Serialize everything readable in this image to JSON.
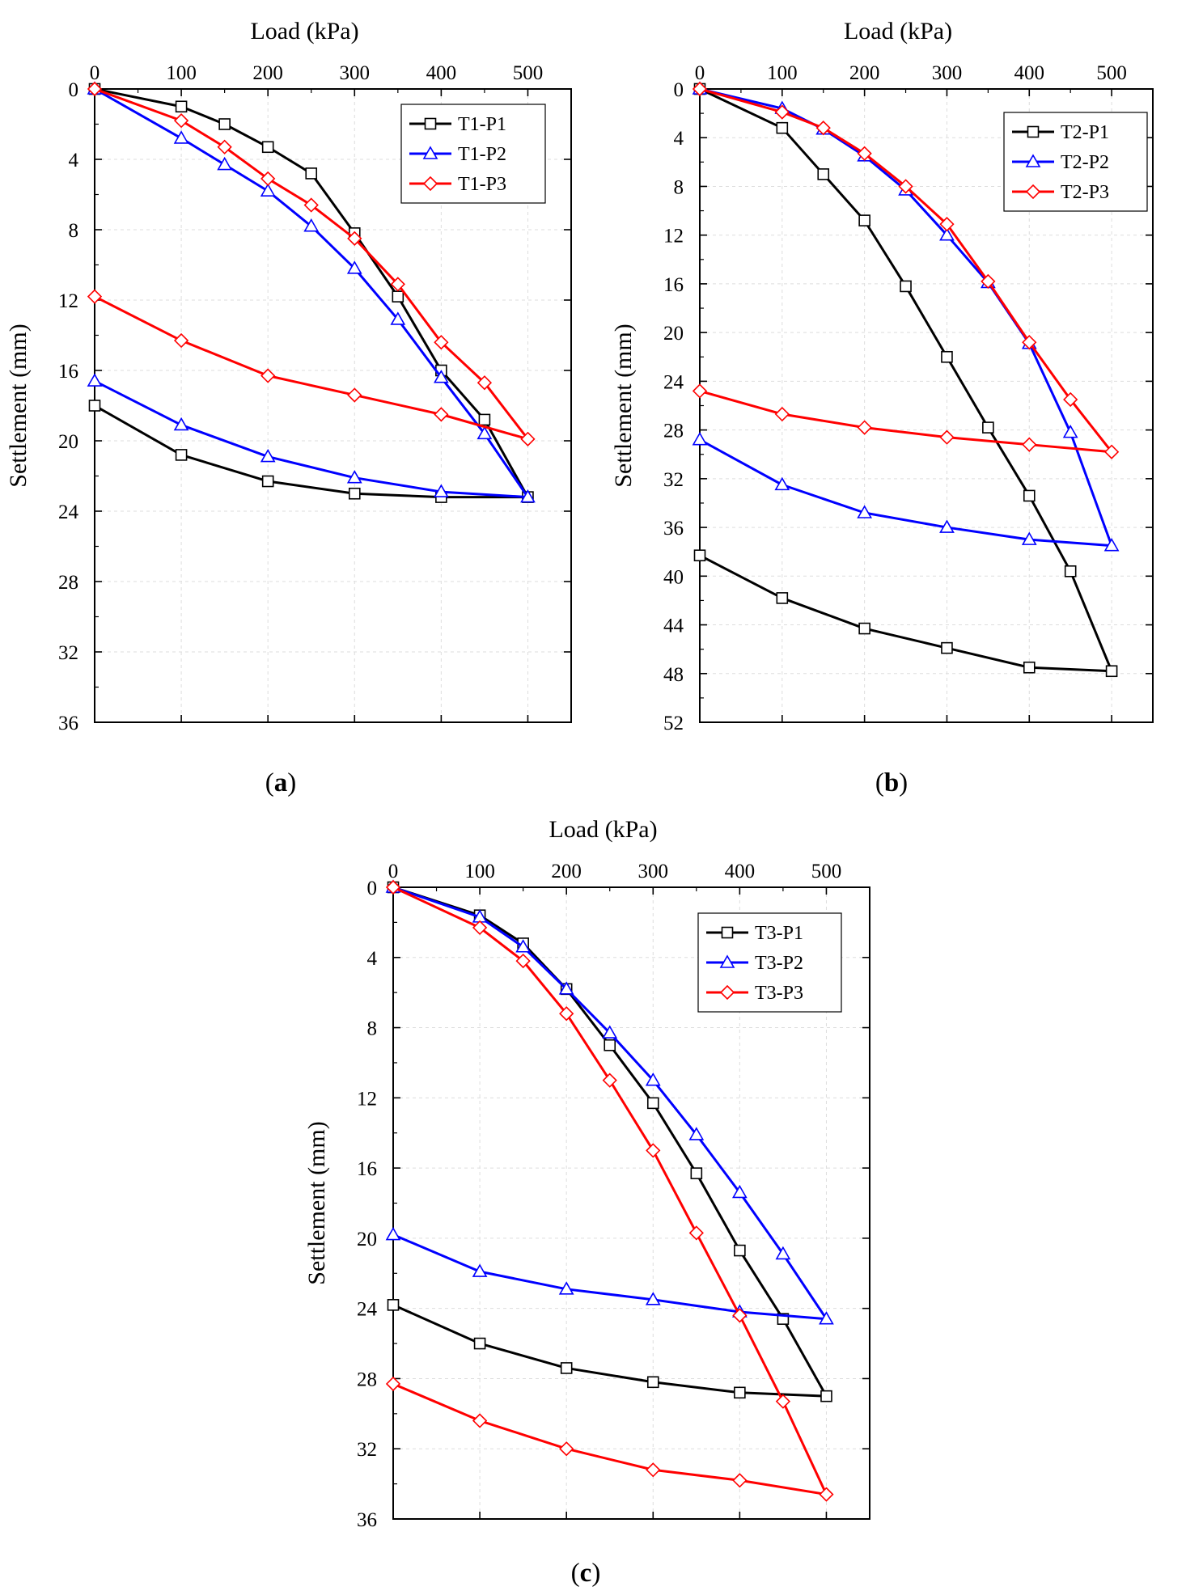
{
  "chart_data": [
    {
      "panel": "a",
      "type": "line",
      "xlabel": "Load (kPa)",
      "ylabel": "Settlement (mm)",
      "xlim": [
        0,
        550
      ],
      "ylim": [
        0,
        36
      ],
      "y_inverted": true,
      "x_axis_position": "top",
      "xticks": [
        0,
        100,
        200,
        300,
        400,
        500
      ],
      "xtick_labels": [
        "0",
        "100",
        "200",
        "300",
        "400",
        "500"
      ],
      "yticks": [
        0,
        4,
        8,
        12,
        16,
        20,
        24,
        28,
        32,
        36
      ],
      "ytick_labels": [
        "0",
        "4",
        "8",
        "12",
        "16",
        "20",
        "24",
        "28",
        "32",
        "36"
      ],
      "grid": true,
      "legend_position": "top-right",
      "series": [
        {
          "name": "T1-P1",
          "color": "#000000",
          "marker": "square",
          "x": [
            0,
            100,
            150,
            200,
            250,
            300,
            350,
            400,
            450,
            500,
            400,
            300,
            200,
            100,
            0
          ],
          "y": [
            0,
            1.0,
            2.0,
            3.3,
            4.8,
            8.2,
            11.8,
            16.0,
            18.8,
            23.2,
            23.2,
            23.0,
            22.3,
            20.8,
            18.0
          ]
        },
        {
          "name": "T1-P2",
          "color": "#0000ff",
          "marker": "triangle",
          "x": [
            0,
            100,
            150,
            200,
            250,
            300,
            350,
            400,
            450,
            500,
            400,
            300,
            200,
            100,
            0
          ],
          "y": [
            0,
            2.8,
            4.3,
            5.8,
            7.8,
            10.2,
            13.1,
            16.4,
            19.6,
            23.2,
            22.9,
            22.1,
            20.9,
            19.1,
            16.6
          ]
        },
        {
          "name": "T1-P3",
          "color": "#ff0000",
          "marker": "diamond",
          "x": [
            0,
            100,
            150,
            200,
            250,
            300,
            350,
            400,
            450,
            500,
            400,
            300,
            200,
            100,
            0
          ],
          "y": [
            0,
            1.8,
            3.3,
            5.1,
            6.6,
            8.5,
            11.1,
            14.4,
            16.7,
            19.9,
            18.5,
            17.4,
            16.3,
            14.3,
            11.8
          ]
        }
      ]
    },
    {
      "panel": "b",
      "type": "line",
      "xlabel": "Load (kPa)",
      "ylabel": "Settlement (mm)",
      "xlim": [
        0,
        550
      ],
      "ylim": [
        0,
        52
      ],
      "y_inverted": true,
      "x_axis_position": "top",
      "xticks": [
        0,
        100,
        200,
        300,
        400,
        500
      ],
      "xtick_labels": [
        "0",
        "100",
        "200",
        "300",
        "400",
        "500"
      ],
      "yticks": [
        0,
        4,
        8,
        12,
        16,
        20,
        24,
        28,
        32,
        36,
        40,
        44,
        48,
        52
      ],
      "ytick_labels": [
        "0",
        "4",
        "8",
        "12",
        "16",
        "20",
        "24",
        "28",
        "32",
        "36",
        "40",
        "44",
        "48",
        "52"
      ],
      "grid": true,
      "legend_position": "top-right",
      "series": [
        {
          "name": "T2-P1",
          "color": "#000000",
          "marker": "square",
          "x": [
            0,
            100,
            150,
            200,
            250,
            300,
            350,
            400,
            450,
            500,
            400,
            300,
            200,
            100,
            0
          ],
          "y": [
            0,
            3.2,
            7.0,
            10.8,
            16.2,
            22.0,
            27.8,
            33.4,
            39.6,
            47.8,
            47.5,
            45.9,
            44.3,
            41.8,
            38.3
          ]
        },
        {
          "name": "T2-P2",
          "color": "#0000ff",
          "marker": "triangle",
          "x": [
            0,
            100,
            150,
            200,
            250,
            300,
            350,
            400,
            450,
            500,
            400,
            300,
            200,
            100,
            0
          ],
          "y": [
            0,
            1.6,
            3.3,
            5.5,
            8.3,
            12.0,
            15.9,
            20.9,
            28.2,
            37.5,
            37.0,
            36.0,
            34.8,
            32.5,
            28.8
          ]
        },
        {
          "name": "T2-P3",
          "color": "#ff0000",
          "marker": "diamond",
          "x": [
            0,
            100,
            150,
            200,
            250,
            300,
            350,
            400,
            450,
            500,
            400,
            300,
            200,
            100,
            0
          ],
          "y": [
            0,
            1.9,
            3.2,
            5.3,
            8.0,
            11.1,
            15.8,
            20.8,
            25.5,
            29.8,
            29.2,
            28.6,
            27.8,
            26.7,
            24.8
          ]
        }
      ]
    },
    {
      "panel": "c",
      "type": "line",
      "xlabel": "Load (kPa)",
      "ylabel": "Settlement (mm)",
      "xlim": [
        0,
        550
      ],
      "ylim": [
        0,
        36
      ],
      "y_inverted": true,
      "x_axis_position": "top",
      "xticks": [
        0,
        100,
        200,
        300,
        400,
        500
      ],
      "xtick_labels": [
        "0",
        "100",
        "200",
        "300",
        "400",
        "500"
      ],
      "yticks": [
        0,
        4,
        8,
        12,
        16,
        20,
        24,
        28,
        32,
        36
      ],
      "ytick_labels": [
        "0",
        "4",
        "8",
        "12",
        "16",
        "20",
        "24",
        "28",
        "32",
        "36"
      ],
      "grid": true,
      "legend_position": "top-right",
      "series": [
        {
          "name": "T3-P1",
          "color": "#000000",
          "marker": "square",
          "x": [
            0,
            100,
            150,
            200,
            250,
            300,
            350,
            400,
            450,
            500,
            400,
            300,
            200,
            100,
            0
          ],
          "y": [
            0,
            1.6,
            3.2,
            5.8,
            9.0,
            12.3,
            16.3,
            20.7,
            24.6,
            29.0,
            28.8,
            28.2,
            27.4,
            26.0,
            23.8
          ]
        },
        {
          "name": "T3-P2",
          "color": "#0000ff",
          "marker": "triangle",
          "x": [
            0,
            100,
            150,
            200,
            250,
            300,
            350,
            400,
            450,
            500,
            400,
            300,
            200,
            100,
            0
          ],
          "y": [
            0,
            1.7,
            3.4,
            5.8,
            8.3,
            11.0,
            14.1,
            17.4,
            20.9,
            24.6,
            24.2,
            23.5,
            22.9,
            21.9,
            19.8
          ]
        },
        {
          "name": "T3-P3",
          "color": "#ff0000",
          "marker": "diamond",
          "x": [
            0,
            100,
            150,
            200,
            250,
            300,
            350,
            400,
            450,
            500,
            400,
            300,
            200,
            100,
            0
          ],
          "y": [
            0,
            2.3,
            4.2,
            7.2,
            11.0,
            15.0,
            19.7,
            24.4,
            29.3,
            34.6,
            33.8,
            33.2,
            32.0,
            30.4,
            28.3
          ]
        }
      ]
    }
  ],
  "panel_labels": [
    {
      "open": "(",
      "letter": "a",
      "close": ")"
    },
    {
      "open": "(",
      "letter": "b",
      "close": ")"
    },
    {
      "open": "(",
      "letter": "c",
      "close": ")"
    }
  ]
}
